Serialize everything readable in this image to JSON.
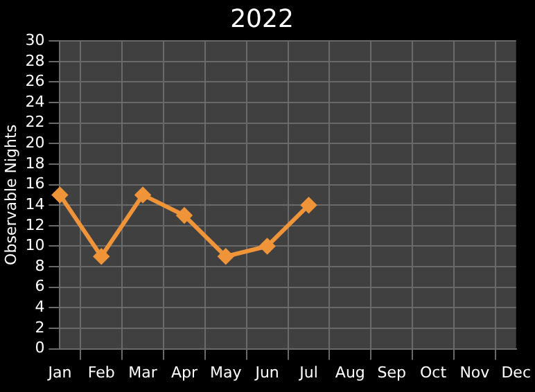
{
  "chart_data": {
    "type": "line",
    "title": "2022",
    "ylabel": "Observable Nights",
    "categories": [
      "Jan",
      "Feb",
      "Mar",
      "Apr",
      "May",
      "Jun",
      "Jul",
      "Aug",
      "Sep",
      "Oct",
      "Nov",
      "Dec"
    ],
    "series": [
      {
        "color": "#f0943a",
        "values": [
          15,
          9,
          15,
          13,
          9,
          10,
          14,
          null,
          null,
          null,
          null,
          null
        ]
      }
    ],
    "ylim": [
      0,
      30
    ],
    "yticks": [
      0,
      2,
      4,
      6,
      8,
      10,
      12,
      14,
      16,
      18,
      20,
      22,
      24,
      26,
      28,
      30
    ],
    "grid": true,
    "legend": false,
    "marker": "diamond",
    "line_style": "solid"
  }
}
